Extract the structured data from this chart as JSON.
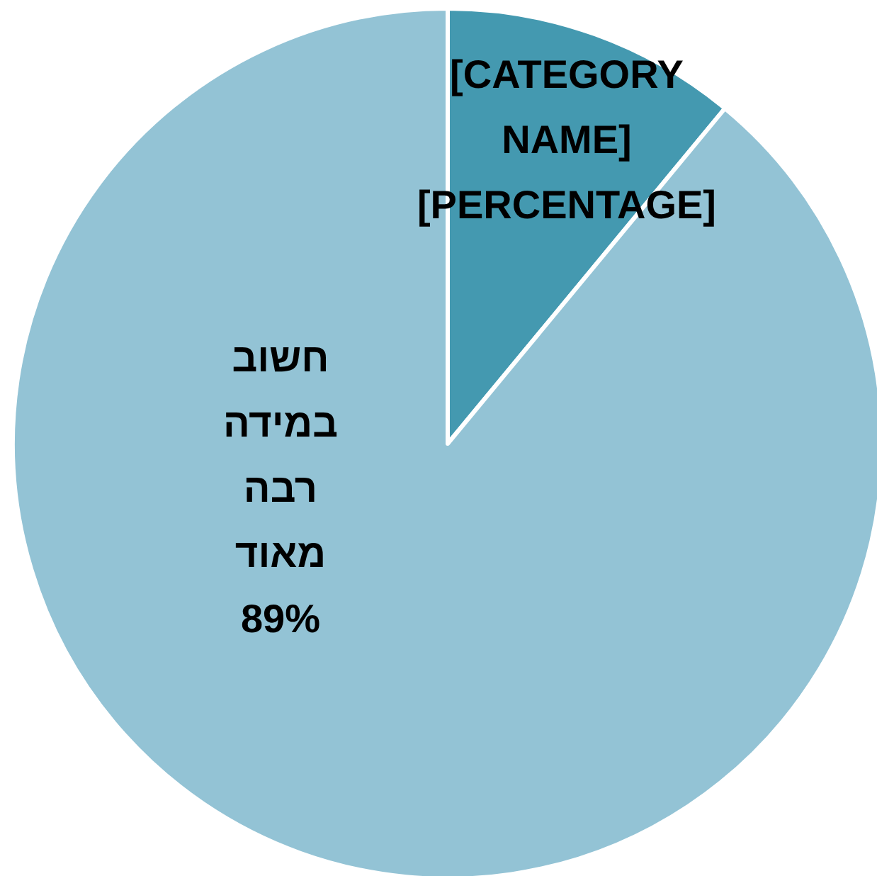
{
  "chart_data": {
    "type": "pie",
    "categories": [
      "[CATEGORY NAME]",
      "חשוב במידה רבה מאוד"
    ],
    "values": [
      11,
      89
    ],
    "value_labels": [
      "[PERCENTAGE]",
      "89%"
    ],
    "colors": [
      "#4499b0",
      "#93c3d5"
    ]
  }
}
